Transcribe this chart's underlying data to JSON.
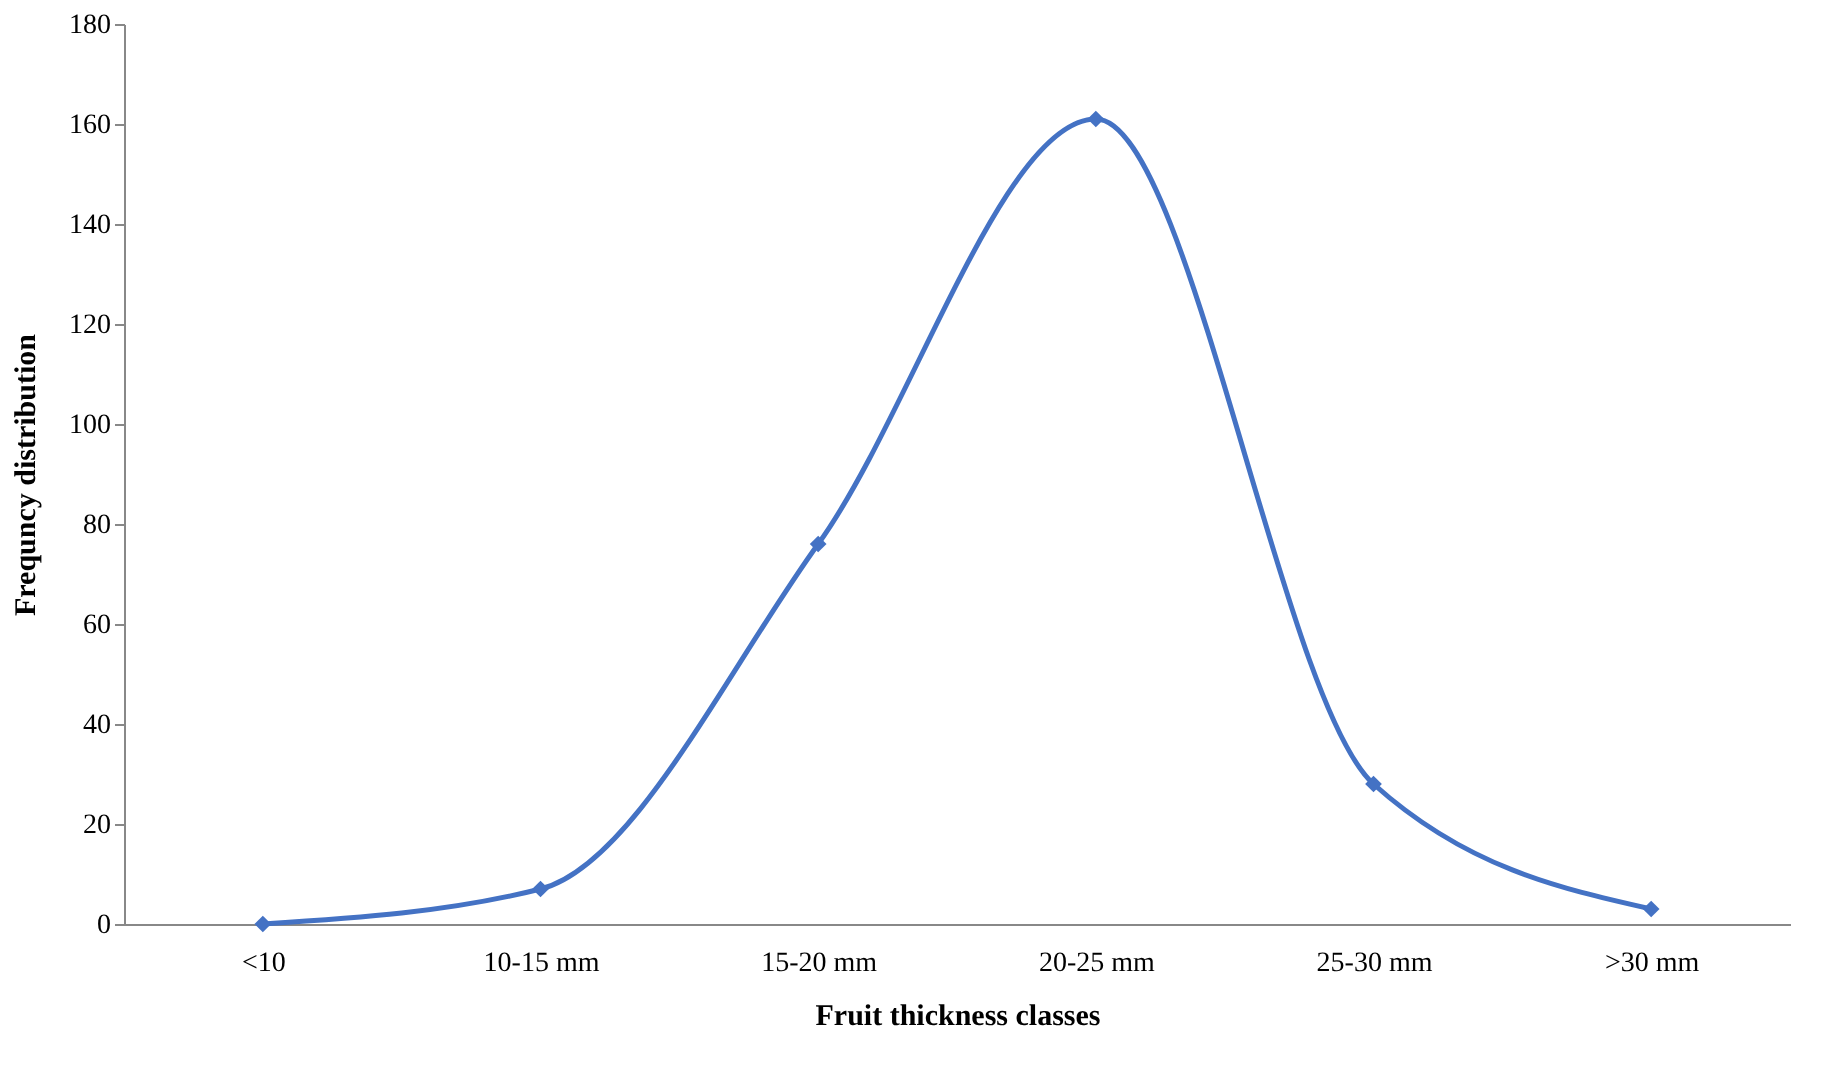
{
  "chart_data": {
    "type": "line",
    "xlabel": "Fruit  thickness classes",
    "ylabel": "Frequncy distribution",
    "categories": [
      "<10",
      "10-15 mm",
      "15-20 mm",
      "20-25 mm",
      "25-30 mm",
      ">30 mm"
    ],
    "series": [
      {
        "color": "#4472c4",
        "values": [
          0,
          7,
          76,
          161,
          28,
          3
        ]
      }
    ],
    "ylim": [
      0,
      180
    ],
    "yticks": [
      0,
      20,
      40,
      60,
      80,
      100,
      120,
      140,
      160,
      180
    ],
    "marker": "diamond",
    "line_style": "solid",
    "grid": false
  }
}
